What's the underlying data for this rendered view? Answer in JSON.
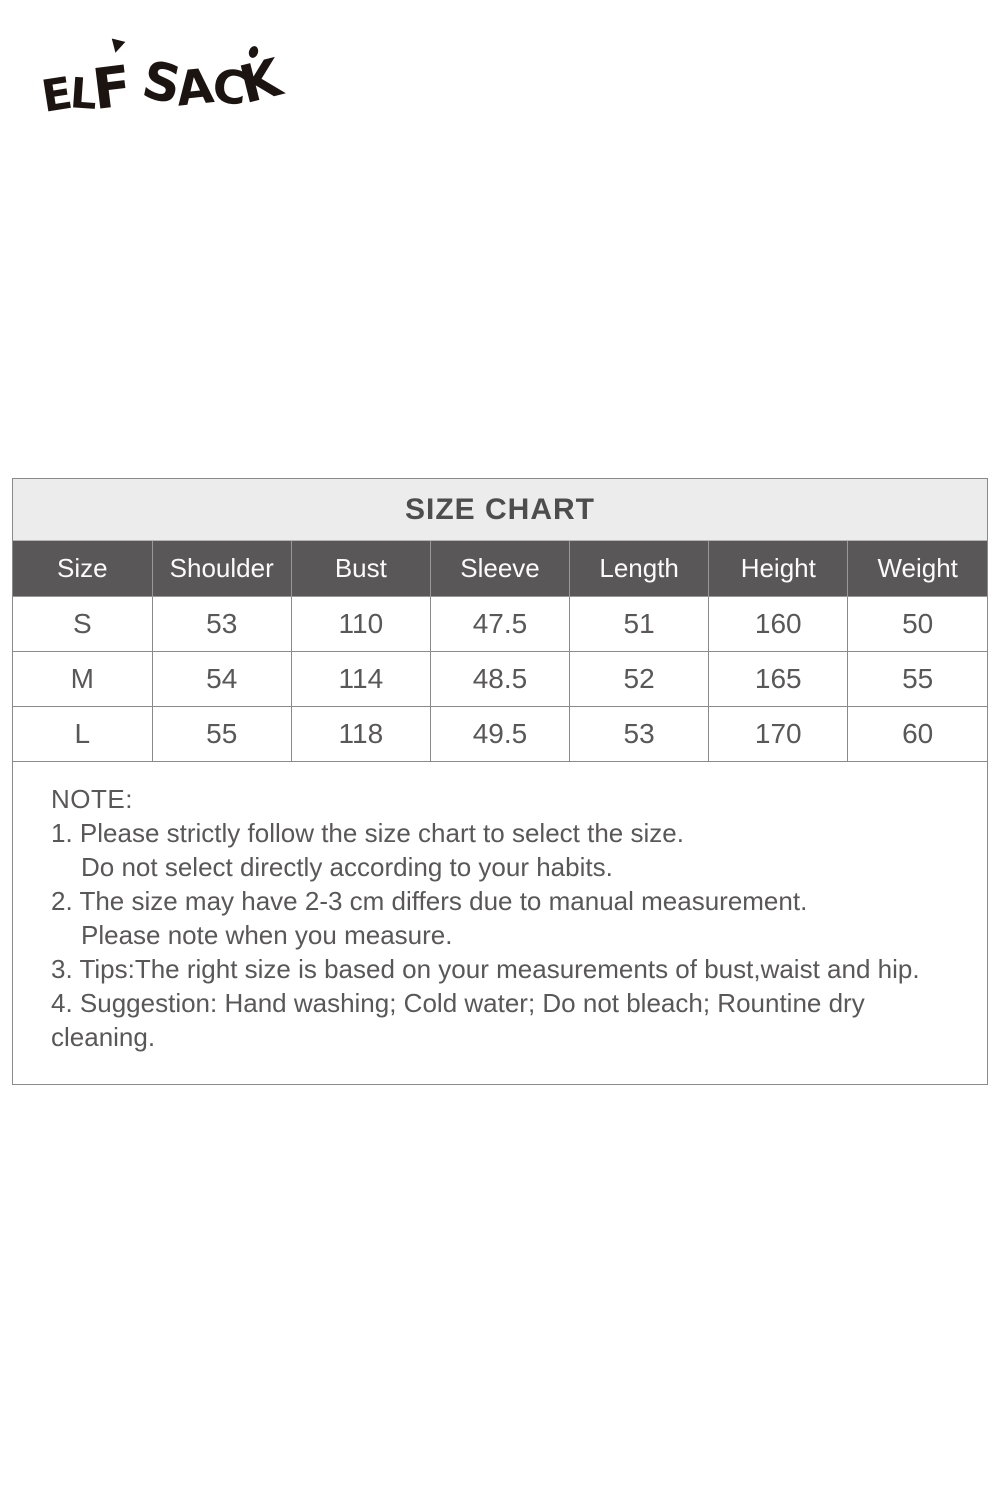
{
  "brand": {
    "name": "ELF SACK"
  },
  "size_chart": {
    "title": "SIZE CHART",
    "columns": [
      "Size",
      "Shoulder",
      "Bust",
      "Sleeve",
      "Length",
      "Height",
      "Weight"
    ],
    "rows": [
      [
        "S",
        "53",
        "110",
        "47.5",
        "51",
        "160",
        "50"
      ],
      [
        "M",
        "54",
        "114",
        "48.5",
        "52",
        "165",
        "55"
      ],
      [
        "L",
        "55",
        "118",
        "49.5",
        "53",
        "170",
        "60"
      ]
    ]
  },
  "notes": {
    "heading": "NOTE:",
    "lines": [
      {
        "text": "1. Please strictly follow the size chart to select the size.",
        "indent": false
      },
      {
        "text": "Do not select directly according to your habits.",
        "indent": true
      },
      {
        "text": "2. The size may have 2-3 cm differs due to manual measurement.",
        "indent": false
      },
      {
        "text": "Please note when you measure.",
        "indent": true
      },
      {
        "text": "3. Tips:The right size is based on your measurements of bust,waist and hip.",
        "indent": false
      },
      {
        "text": "4. Suggestion: Hand washing; Cold water; Do not bleach; Rountine dry cleaning.",
        "indent": false
      }
    ]
  },
  "colors": {
    "logo": "#1c1410",
    "title_bar_bg": "#ececec",
    "title_text": "#4d4d4d",
    "header_bg": "#595757",
    "header_text": "#fbfbfb",
    "body_text": "#595757",
    "border": "#8a8a8a",
    "page_bg": "#ffffff"
  }
}
